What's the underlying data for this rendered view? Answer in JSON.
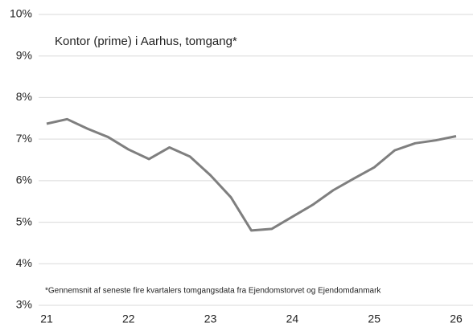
{
  "chart_data": {
    "type": "line",
    "title": "Kontor (prime) i Aarhus, tomgang*",
    "note": "*Gennemsnit af seneste fire kvartalers tomgangsdata fra Ejendomstorvet og Ejendomdanmark",
    "x": [
      21,
      21.25,
      21.5,
      21.75,
      22,
      22.25,
      22.5,
      22.75,
      23,
      23.25,
      23.5,
      23.75,
      24,
      24.25,
      24.5,
      24.75,
      25,
      25.25,
      25.5,
      25.75,
      26
    ],
    "series": [
      {
        "color": "#7f7f7f",
        "values": [
          7.37,
          7.48,
          7.25,
          7.05,
          6.75,
          6.52,
          6.8,
          6.58,
          6.13,
          5.6,
          4.8,
          4.84,
          5.13,
          5.42,
          5.77,
          6.05,
          6.32,
          6.73,
          6.9,
          6.97,
          7.07
        ]
      }
    ],
    "xlim": [
      21,
      26
    ],
    "xticks": [
      21,
      22,
      23,
      24,
      25,
      26
    ],
    "ylim": [
      3,
      10
    ],
    "yticks": [
      {
        "value": 3,
        "label": "3%"
      },
      {
        "value": 4,
        "label": "4%"
      },
      {
        "value": 5,
        "label": "5%"
      },
      {
        "value": 6,
        "label": "6%"
      },
      {
        "value": 7,
        "label": "7%"
      },
      {
        "value": 8,
        "label": "8%"
      },
      {
        "value": 9,
        "label": "9%"
      },
      {
        "value": 10,
        "label": "10%"
      }
    ],
    "grid": true
  }
}
